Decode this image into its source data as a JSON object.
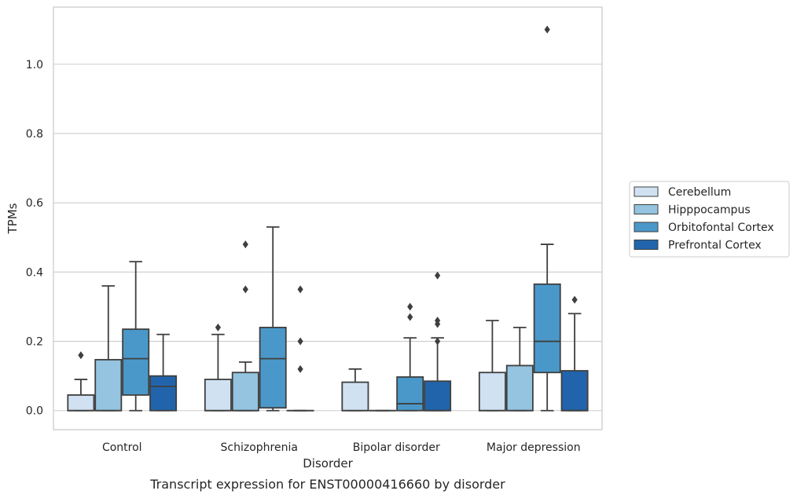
{
  "caption": "Transcript expression for ENST00000416660 by disorder",
  "chart_data": {
    "type": "boxplot",
    "xlabel": "Disorder",
    "ylabel": "TPMs",
    "ylim": [
      -0.055,
      1.165
    ],
    "yticks": [
      0.0,
      0.2,
      0.4,
      0.6,
      0.8,
      1.0
    ],
    "ytick_labels": [
      "0.0",
      "0.2",
      "0.4",
      "0.6",
      "0.8",
      "1.0"
    ],
    "grid": "horizontal",
    "legend_position": "right",
    "categories": [
      "Control",
      "Schizophrenia",
      "Bipolar disorder",
      "Major depression"
    ],
    "series": [
      {
        "name": "Cerebellum",
        "color": "#d0e1f2",
        "boxes": [
          {
            "whislo": 0.0,
            "q1": 0.0,
            "med": 0.0,
            "q3": 0.045,
            "whishi": 0.09,
            "fliers": [
              0.16
            ]
          },
          {
            "whislo": 0.0,
            "q1": 0.0,
            "med": 0.0,
            "q3": 0.09,
            "whishi": 0.22,
            "fliers": [
              0.24
            ]
          },
          {
            "whislo": 0.0,
            "q1": 0.0,
            "med": 0.0,
            "q3": 0.082,
            "whishi": 0.12,
            "fliers": []
          },
          {
            "whislo": 0.0,
            "q1": 0.0,
            "med": 0.0,
            "q3": 0.11,
            "whishi": 0.26,
            "fliers": []
          }
        ]
      },
      {
        "name": "Hipppocampus",
        "color": "#94c4df",
        "boxes": [
          {
            "whislo": 0.0,
            "q1": 0.0,
            "med": 0.0,
            "q3": 0.147,
            "whishi": 0.36,
            "fliers": []
          },
          {
            "whislo": 0.0,
            "q1": 0.0,
            "med": 0.0,
            "q3": 0.11,
            "whishi": 0.14,
            "fliers": [
              0.35,
              0.48
            ]
          },
          {
            "whislo": 0.0,
            "q1": 0.0,
            "med": 0.0,
            "q3": 0.0,
            "whishi": 0.0,
            "fliers": []
          },
          {
            "whislo": 0.0,
            "q1": 0.0,
            "med": 0.0,
            "q3": 0.13,
            "whishi": 0.24,
            "fliers": []
          }
        ]
      },
      {
        "name": "Orbitofontal Cortex",
        "color": "#4a98c9",
        "boxes": [
          {
            "whislo": 0.0,
            "q1": 0.045,
            "med": 0.15,
            "q3": 0.235,
            "whishi": 0.43,
            "fliers": []
          },
          {
            "whislo": 0.0,
            "q1": 0.008,
            "med": 0.15,
            "q3": 0.24,
            "whishi": 0.53,
            "fliers": []
          },
          {
            "whislo": 0.0,
            "q1": 0.0,
            "med": 0.02,
            "q3": 0.097,
            "whishi": 0.21,
            "fliers": [
              0.27,
              0.3
            ]
          },
          {
            "whislo": 0.0,
            "q1": 0.11,
            "med": 0.2,
            "q3": 0.365,
            "whishi": 0.48,
            "fliers": [
              1.1
            ]
          }
        ]
      },
      {
        "name": "Prefrontal Cortex",
        "color": "#2164ab",
        "boxes": [
          {
            "whislo": 0.0,
            "q1": 0.0,
            "med": 0.07,
            "q3": 0.1,
            "whishi": 0.22,
            "fliers": []
          },
          {
            "whislo": 0.0,
            "q1": 0.0,
            "med": 0.0,
            "q3": 0.0,
            "whishi": 0.0,
            "fliers": [
              0.12,
              0.2,
              0.35
            ]
          },
          {
            "whislo": 0.0,
            "q1": 0.0,
            "med": 0.0,
            "q3": 0.085,
            "whishi": 0.21,
            "fliers": [
              0.2,
              0.25,
              0.26,
              0.39
            ]
          },
          {
            "whislo": 0.0,
            "q1": 0.0,
            "med": 0.0,
            "q3": 0.115,
            "whishi": 0.28,
            "fliers": [
              0.32
            ]
          }
        ]
      }
    ]
  },
  "colors": {
    "grid": "#cccccc",
    "frame": "#cccccc",
    "box_edge": "#3f3f3f",
    "text": "#262626"
  }
}
